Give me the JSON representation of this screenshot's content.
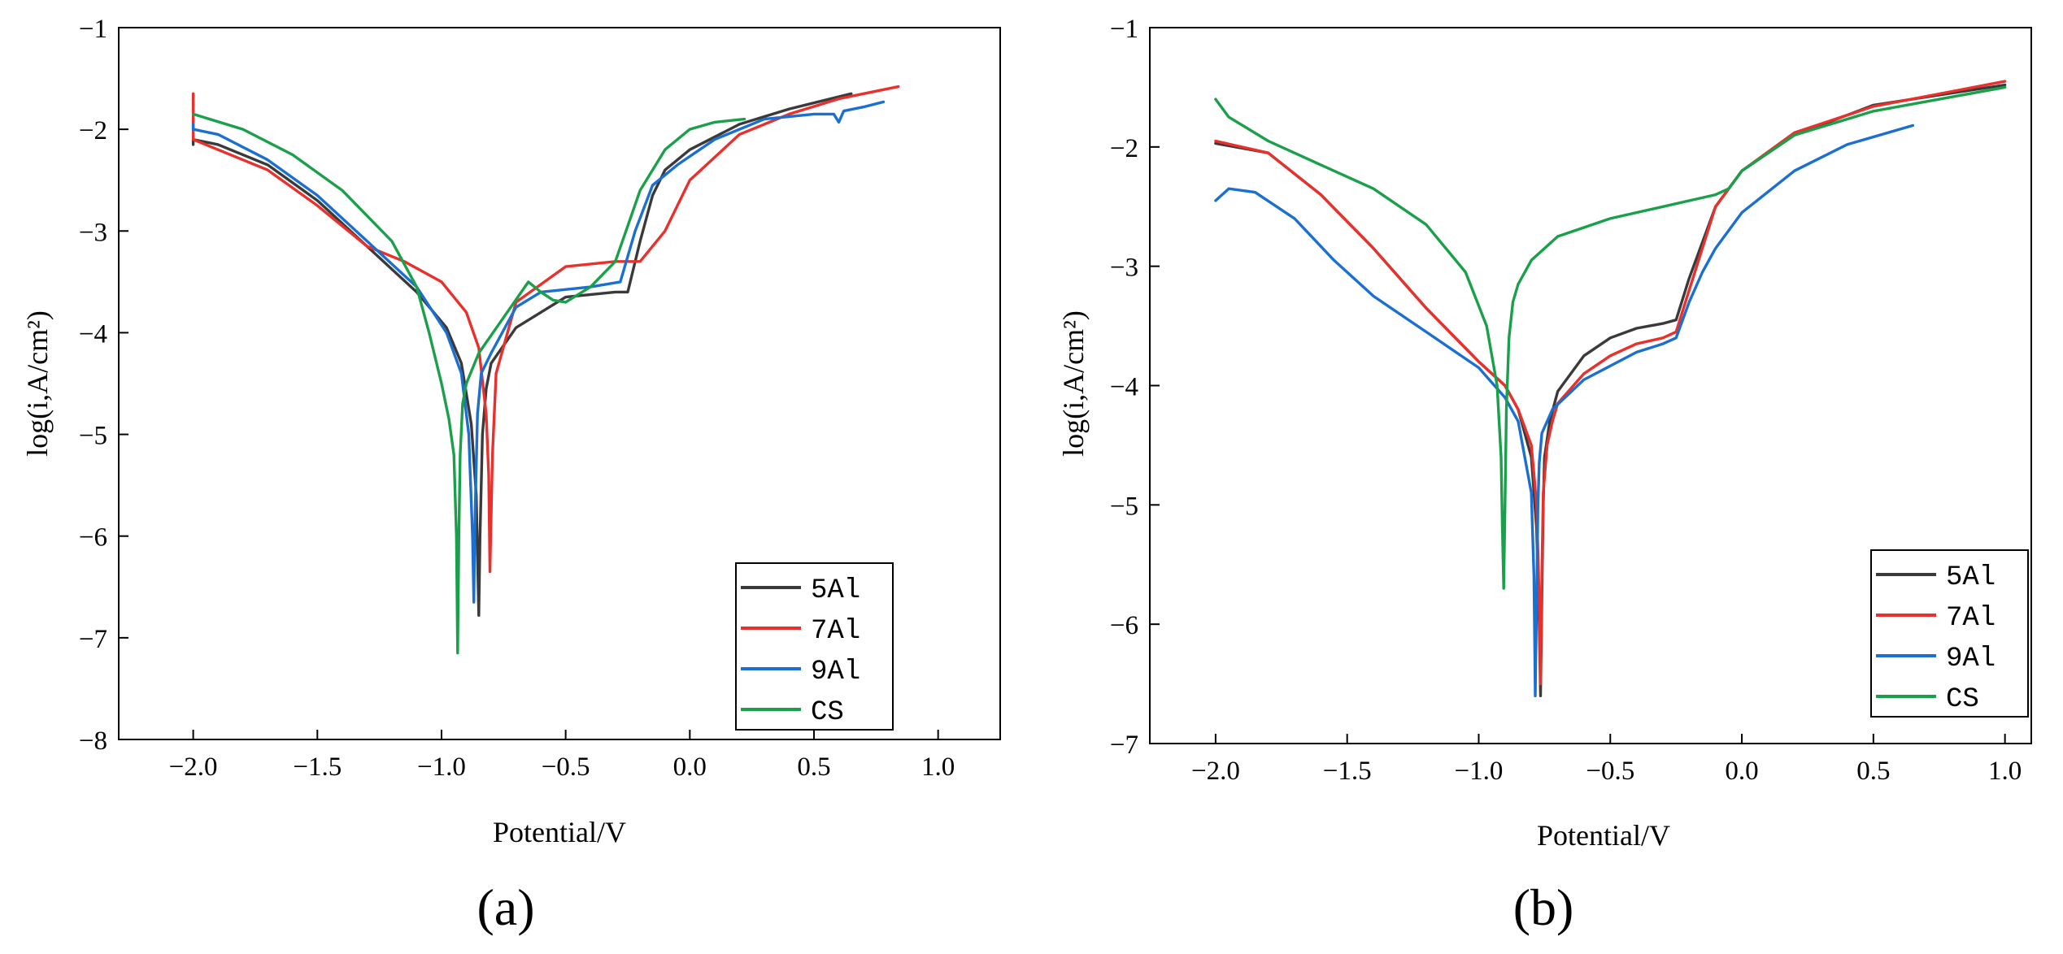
{
  "chart_data": [
    {
      "type": "line",
      "panel_label": "(a)",
      "xlabel": "Potential/V",
      "ylabel": "log(i,A/cm²)",
      "xlim": [
        -2.3,
        1.25
      ],
      "ylim": [
        -8,
        -1
      ],
      "xticks": [
        -2.0,
        -1.5,
        -1.0,
        -0.5,
        0.0,
        0.5,
        1.0
      ],
      "xtick_labels": [
        "−2.0",
        "−1.5",
        "−1.0",
        "−0.5",
        "0.0",
        "0.5",
        "1.0"
      ],
      "yticks": [
        -1,
        -2,
        -3,
        -4,
        -5,
        -6,
        -7,
        -8
      ],
      "ytick_labels": [
        "−1",
        "−2",
        "−3",
        "−4",
        "−5",
        "−6",
        "−7",
        "−8"
      ],
      "legend_position": "bottom-right",
      "series": [
        {
          "name": "5Al",
          "color": "#3a3a3a",
          "x": [
            -2.0,
            -2.0,
            -1.9,
            -1.7,
            -1.5,
            -1.3,
            -1.1,
            -0.98,
            -0.92,
            -0.88,
            -0.86,
            -0.85,
            -0.845,
            -0.835,
            -0.82,
            -0.8,
            -0.7,
            -0.5,
            -0.3,
            -0.25,
            -0.2,
            -0.15,
            -0.1,
            0.0,
            0.2,
            0.4,
            0.65
          ],
          "y": [
            -2.15,
            -2.1,
            -2.15,
            -2.35,
            -2.7,
            -3.15,
            -3.6,
            -3.95,
            -4.3,
            -4.9,
            -5.6,
            -6.78,
            -6.0,
            -5.0,
            -4.55,
            -4.3,
            -3.95,
            -3.65,
            -3.6,
            -3.6,
            -3.1,
            -2.65,
            -2.4,
            -2.2,
            -1.95,
            -1.8,
            -1.65
          ]
        },
        {
          "name": "7Al",
          "color": "#e8302c",
          "x": [
            -2.0,
            -2.0,
            -1.9,
            -1.7,
            -1.5,
            -1.4,
            -1.3,
            -1.15,
            -1.0,
            -0.9,
            -0.85,
            -0.82,
            -0.81,
            -0.805,
            -0.795,
            -0.78,
            -0.7,
            -0.5,
            -0.3,
            -0.2,
            -0.1,
            0.0,
            0.2,
            0.4,
            0.6,
            0.84
          ],
          "y": [
            -1.65,
            -2.1,
            -2.2,
            -2.4,
            -2.75,
            -2.95,
            -3.15,
            -3.3,
            -3.5,
            -3.8,
            -4.15,
            -4.8,
            -5.4,
            -6.35,
            -5.2,
            -4.4,
            -3.7,
            -3.35,
            -3.3,
            -3.3,
            -3.0,
            -2.5,
            -2.05,
            -1.85,
            -1.7,
            -1.58
          ]
        },
        {
          "name": "9Al",
          "color": "#1b6fd1",
          "x": [
            -2.0,
            -2.0,
            -1.9,
            -1.7,
            -1.5,
            -1.3,
            -1.1,
            -0.98,
            -0.92,
            -0.89,
            -0.875,
            -0.87,
            -0.865,
            -0.855,
            -0.84,
            -0.8,
            -0.7,
            -0.6,
            -0.4,
            -0.28,
            -0.22,
            -0.15,
            -0.05,
            0.1,
            0.3,
            0.5,
            0.58,
            0.6,
            0.62,
            0.7,
            0.78
          ],
          "y": [
            -1.95,
            -2.0,
            -2.05,
            -2.3,
            -2.65,
            -3.1,
            -3.55,
            -4.0,
            -4.4,
            -5.0,
            -6.0,
            -6.65,
            -5.8,
            -4.8,
            -4.4,
            -4.2,
            -3.75,
            -3.6,
            -3.55,
            -3.5,
            -3.0,
            -2.55,
            -2.35,
            -2.1,
            -1.9,
            -1.85,
            -1.85,
            -1.93,
            -1.82,
            -1.78,
            -1.73
          ]
        },
        {
          "name": "CS",
          "color": "#1aa04a",
          "x": [
            -2.0,
            -1.8,
            -1.6,
            -1.4,
            -1.2,
            -1.1,
            -1.05,
            -1.0,
            -0.97,
            -0.95,
            -0.94,
            -0.935,
            -0.93,
            -0.925,
            -0.915,
            -0.9,
            -0.85,
            -0.75,
            -0.65,
            -0.6,
            -0.55,
            -0.5,
            -0.4,
            -0.3,
            -0.25,
            -0.2,
            -0.1,
            0.0,
            0.1,
            0.22
          ],
          "y": [
            -1.85,
            -2.0,
            -2.25,
            -2.6,
            -3.1,
            -3.55,
            -4.0,
            -4.5,
            -4.85,
            -5.2,
            -6.0,
            -7.15,
            -6.0,
            -5.2,
            -4.7,
            -4.5,
            -4.2,
            -3.85,
            -3.5,
            -3.6,
            -3.68,
            -3.7,
            -3.55,
            -3.3,
            -2.95,
            -2.6,
            -2.2,
            -2.0,
            -1.93,
            -1.9
          ]
        }
      ]
    },
    {
      "type": "line",
      "panel_label": "(b)",
      "xlabel": "Potential/V",
      "ylabel": "log(i,A/cm²)",
      "xlim": [
        -2.25,
        1.1
      ],
      "ylim": [
        -7,
        -1
      ],
      "xticks": [
        -2.0,
        -1.5,
        -1.0,
        -0.5,
        0.0,
        0.5,
        1.0
      ],
      "xtick_labels": [
        "−2.0",
        "−1.5",
        "−1.0",
        "−0.5",
        "0.0",
        "0.5",
        "1.0"
      ],
      "yticks": [
        -1,
        -2,
        -3,
        -4,
        -5,
        -6,
        -7
      ],
      "ytick_labels": [
        "−1",
        "−2",
        "−3",
        "−4",
        "−5",
        "−6",
        "−7"
      ],
      "legend_position": "bottom-right",
      "series": [
        {
          "name": "5Al",
          "color": "#3a3a3a",
          "x": [
            -2.0,
            -1.8,
            -1.6,
            -1.4,
            -1.2,
            -1.0,
            -0.9,
            -0.85,
            -0.8,
            -0.78,
            -0.77,
            -0.765,
            -0.76,
            -0.755,
            -0.75,
            -0.73,
            -0.7,
            -0.6,
            -0.5,
            -0.4,
            -0.3,
            -0.25,
            -0.2,
            -0.15,
            -0.1,
            0.0,
            0.2,
            0.5,
            1.0
          ],
          "y": [
            -1.97,
            -2.05,
            -2.4,
            -2.85,
            -3.35,
            -3.8,
            -4.0,
            -4.2,
            -4.6,
            -5.2,
            -6.0,
            -6.6,
            -5.8,
            -5.0,
            -4.6,
            -4.3,
            -4.05,
            -3.75,
            -3.6,
            -3.52,
            -3.48,
            -3.45,
            -3.1,
            -2.8,
            -2.5,
            -2.2,
            -1.9,
            -1.65,
            -1.48
          ]
        },
        {
          "name": "7Al",
          "color": "#e8302c",
          "x": [
            -2.0,
            -1.8,
            -1.6,
            -1.4,
            -1.2,
            -1.0,
            -0.9,
            -0.85,
            -0.8,
            -0.78,
            -0.77,
            -0.765,
            -0.76,
            -0.755,
            -0.74,
            -0.72,
            -0.7,
            -0.6,
            -0.5,
            -0.4,
            -0.3,
            -0.25,
            -0.2,
            -0.15,
            -0.1,
            0.0,
            0.2,
            0.5,
            1.0
          ],
          "y": [
            -1.95,
            -2.05,
            -2.4,
            -2.85,
            -3.35,
            -3.8,
            -4.0,
            -4.2,
            -4.5,
            -5.0,
            -5.8,
            -6.5,
            -5.6,
            -4.9,
            -4.5,
            -4.3,
            -4.15,
            -3.9,
            -3.75,
            -3.65,
            -3.6,
            -3.55,
            -3.2,
            -2.85,
            -2.5,
            -2.2,
            -1.88,
            -1.66,
            -1.45
          ]
        },
        {
          "name": "9Al",
          "color": "#1b6fd1",
          "x": [
            -2.0,
            -1.95,
            -1.85,
            -1.7,
            -1.55,
            -1.4,
            -1.2,
            -1.0,
            -0.9,
            -0.85,
            -0.8,
            -0.79,
            -0.785,
            -0.78,
            -0.775,
            -0.77,
            -0.76,
            -0.72,
            -0.6,
            -0.4,
            -0.3,
            -0.25,
            -0.2,
            -0.15,
            -0.1,
            -0.05,
            0.0,
            0.2,
            0.4,
            0.65
          ],
          "y": [
            -2.45,
            -2.35,
            -2.38,
            -2.6,
            -2.95,
            -3.25,
            -3.55,
            -3.85,
            -4.1,
            -4.3,
            -4.9,
            -5.6,
            -6.6,
            -5.8,
            -5.0,
            -4.65,
            -4.4,
            -4.2,
            -3.95,
            -3.72,
            -3.65,
            -3.6,
            -3.3,
            -3.05,
            -2.85,
            -2.7,
            -2.55,
            -2.2,
            -1.98,
            -1.82
          ]
        },
        {
          "name": "CS",
          "color": "#1aa04a",
          "x": [
            -2.0,
            -1.95,
            -1.8,
            -1.6,
            -1.4,
            -1.2,
            -1.05,
            -0.97,
            -0.93,
            -0.915,
            -0.91,
            -0.905,
            -0.9,
            -0.895,
            -0.885,
            -0.87,
            -0.85,
            -0.8,
            -0.7,
            -0.5,
            -0.3,
            -0.1,
            -0.05,
            0.0,
            0.2,
            0.5,
            1.0
          ],
          "y": [
            -1.6,
            -1.75,
            -1.95,
            -2.15,
            -2.35,
            -2.65,
            -3.05,
            -3.5,
            -4.0,
            -4.6,
            -5.2,
            -5.7,
            -5.0,
            -4.2,
            -3.6,
            -3.3,
            -3.15,
            -2.95,
            -2.75,
            -2.6,
            -2.5,
            -2.4,
            -2.35,
            -2.2,
            -1.9,
            -1.7,
            -1.5
          ]
        }
      ]
    }
  ]
}
